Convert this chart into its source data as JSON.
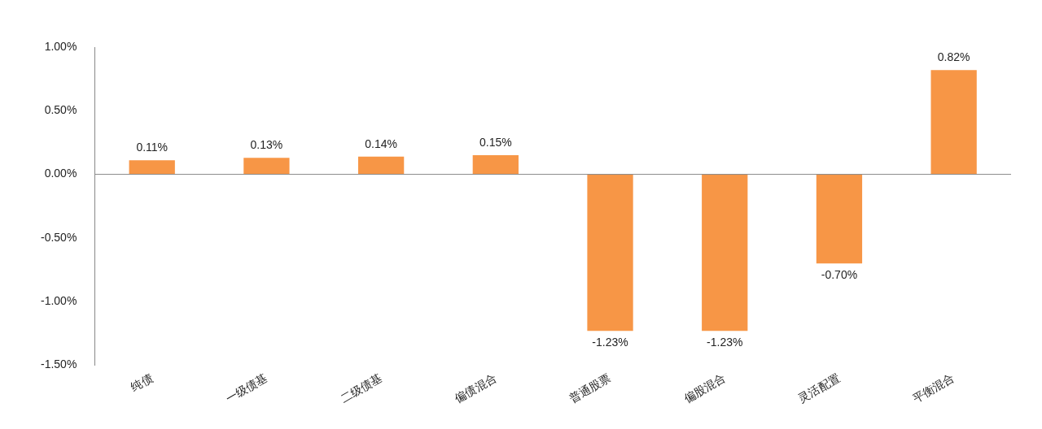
{
  "chart_data": {
    "type": "bar",
    "categories": [
      "纯债",
      "一级债基",
      "二级债基",
      "偏债混合",
      "普通股票",
      "偏股混合",
      "灵活配置",
      "平衡混合"
    ],
    "values": [
      0.11,
      0.13,
      0.14,
      0.15,
      -1.23,
      -1.23,
      -0.7,
      0.82
    ],
    "value_labels": [
      "0.11%",
      "0.13%",
      "0.14%",
      "0.15%",
      "-1.23%",
      "-1.23%",
      "-0.70%",
      "0.82%"
    ],
    "color": "#f79646",
    "ylim": [
      -1.5,
      1.0
    ],
    "yticks": [
      {
        "value": -1.5,
        "label": "-1.50%"
      },
      {
        "value": -1.0,
        "label": "-1.00%"
      },
      {
        "value": -0.5,
        "label": "-0.50%"
      },
      {
        "value": 0,
        "label": "0.00%"
      },
      {
        "value": 0.5,
        "label": "0.50%"
      },
      {
        "value": 1.0,
        "label": "1.00%"
      }
    ],
    "ref_lines": [
      {
        "axis": "y",
        "value": 0,
        "color": "#888888"
      }
    ],
    "grid": false,
    "legend": false
  }
}
